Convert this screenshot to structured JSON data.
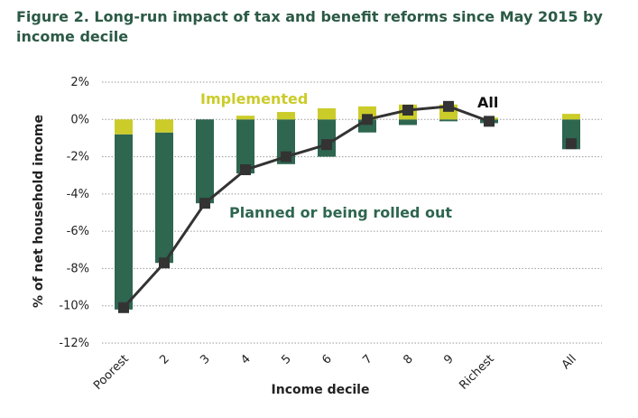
{
  "chart_data": {
    "type": "bar",
    "title": "Figure 2. Long-run impact of tax and benefit reforms since May 2015 by income decile",
    "xlabel": "Income decile",
    "ylabel": "% of net household income",
    "ylim": [
      -12,
      2
    ],
    "yticks": [
      2,
      0,
      -2,
      -4,
      -6,
      -8,
      -10,
      -12
    ],
    "ytick_labels": [
      "2%",
      "0%",
      "-2%",
      "-4%",
      "-6%",
      "-8%",
      "-10%",
      "-12%"
    ],
    "categories": [
      "Poorest",
      "2",
      "3",
      "4",
      "5",
      "6",
      "7",
      "8",
      "9",
      "Richest",
      "All"
    ],
    "series": [
      {
        "name": "Implemented",
        "kind": "stacked-bar",
        "values": [
          -0.8,
          -0.7,
          0.0,
          0.2,
          0.4,
          0.6,
          0.7,
          0.8,
          0.8,
          0.1,
          0.3
        ]
      },
      {
        "name": "Planned or being rolled out",
        "kind": "stacked-bar",
        "values": [
          -9.4,
          -7.0,
          -4.5,
          -2.9,
          -2.4,
          -2.0,
          -0.7,
          -0.3,
          -0.1,
          -0.2,
          -1.6
        ]
      },
      {
        "name": "All",
        "kind": "line-marker",
        "values": [
          -10.1,
          -7.7,
          -4.5,
          -2.7,
          -2.0,
          -1.35,
          0.0,
          0.5,
          0.7,
          -0.1,
          -1.3
        ]
      }
    ],
    "annotations": [
      {
        "text": "Implemented",
        "series": "Implemented"
      },
      {
        "text": "Planned or being rolled out",
        "series": "Planned or being rolled out"
      },
      {
        "text": "All",
        "series": "All"
      }
    ],
    "colors": {
      "implemented": "#cbcc2a",
      "planned": "#2e6650",
      "line": "#333333",
      "marker": "#333333",
      "grid": "#9a9a9a"
    },
    "grid": true
  }
}
